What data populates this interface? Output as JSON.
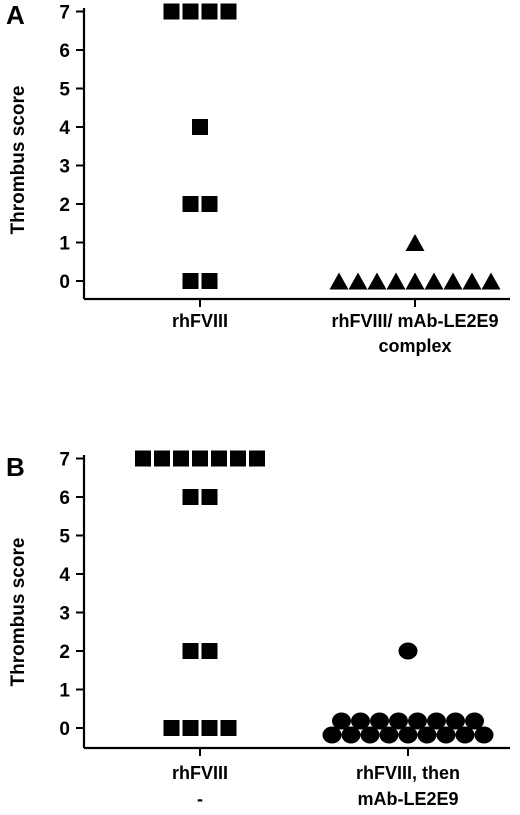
{
  "chart_data": [
    {
      "type": "scatter",
      "panel": "A",
      "ylabel": "Thrombus score",
      "yticks": [
        0,
        1,
        2,
        3,
        4,
        5,
        6,
        7
      ],
      "categories": [
        [
          "rhFVIII"
        ],
        [
          "rhFVIII/ mAb-LE2E9",
          "complex"
        ]
      ],
      "marker_types": [
        "square",
        "triangle"
      ],
      "series": [
        {
          "category": 0,
          "marker": "square",
          "values": [
            7,
            7,
            7,
            7,
            4,
            2,
            2,
            0,
            0
          ]
        },
        {
          "category": 1,
          "marker": "triangle",
          "values": [
            1,
            0,
            0,
            0,
            0,
            0,
            0,
            0,
            0,
            0
          ]
        }
      ]
    },
    {
      "type": "scatter",
      "panel": "B",
      "ylabel": "Thrombus score",
      "yticks": [
        0,
        1,
        2,
        3,
        4,
        5,
        6,
        7
      ],
      "categories": [
        [
          "rhFVIII",
          "-"
        ],
        [
          "rhFVIII, then",
          "mAb-LE2E9"
        ]
      ],
      "marker_types": [
        "square",
        "circle"
      ],
      "series": [
        {
          "category": 0,
          "marker": "square",
          "values": [
            7,
            7,
            7,
            7,
            7,
            7,
            7,
            6,
            6,
            2,
            2,
            0,
            0,
            0,
            0
          ]
        },
        {
          "category": 1,
          "marker": "circle",
          "values": [
            2,
            0,
            0,
            0,
            0,
            0,
            0,
            0,
            0,
            0,
            0,
            0,
            0,
            0,
            0,
            0,
            0,
            0
          ]
        }
      ]
    }
  ]
}
